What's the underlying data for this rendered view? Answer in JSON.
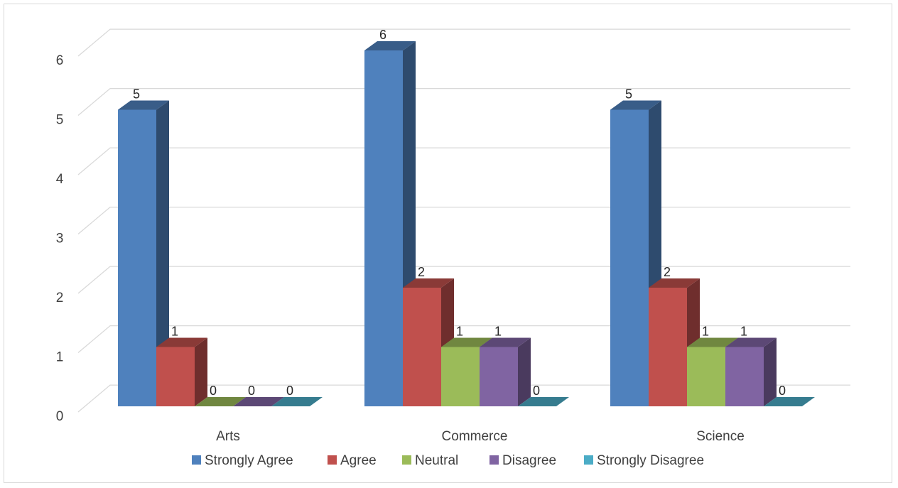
{
  "chart_data": {
    "type": "bar",
    "style": "3d-clustered-column",
    "categories": [
      "Arts",
      "Commerce",
      "Science"
    ],
    "series": [
      {
        "name": "Strongly Agree",
        "color": "#4f81bd",
        "values": [
          5,
          6,
          5
        ]
      },
      {
        "name": "Agree",
        "color": "#c0504d",
        "values": [
          1,
          2,
          2
        ]
      },
      {
        "name": "Neutral",
        "color": "#9bbb59",
        "values": [
          0,
          1,
          1
        ]
      },
      {
        "name": "Disagree",
        "color": "#8064a2",
        "values": [
          0,
          1,
          1
        ]
      },
      {
        "name": "Strongly Disagree",
        "color": "#4bacc6",
        "values": [
          0,
          0,
          0
        ]
      }
    ],
    "ylim": [
      0,
      6
    ],
    "yticks": [
      0,
      1,
      2,
      3,
      4,
      5,
      6
    ],
    "grid": true,
    "legend_position": "bottom",
    "data_labels": true
  }
}
